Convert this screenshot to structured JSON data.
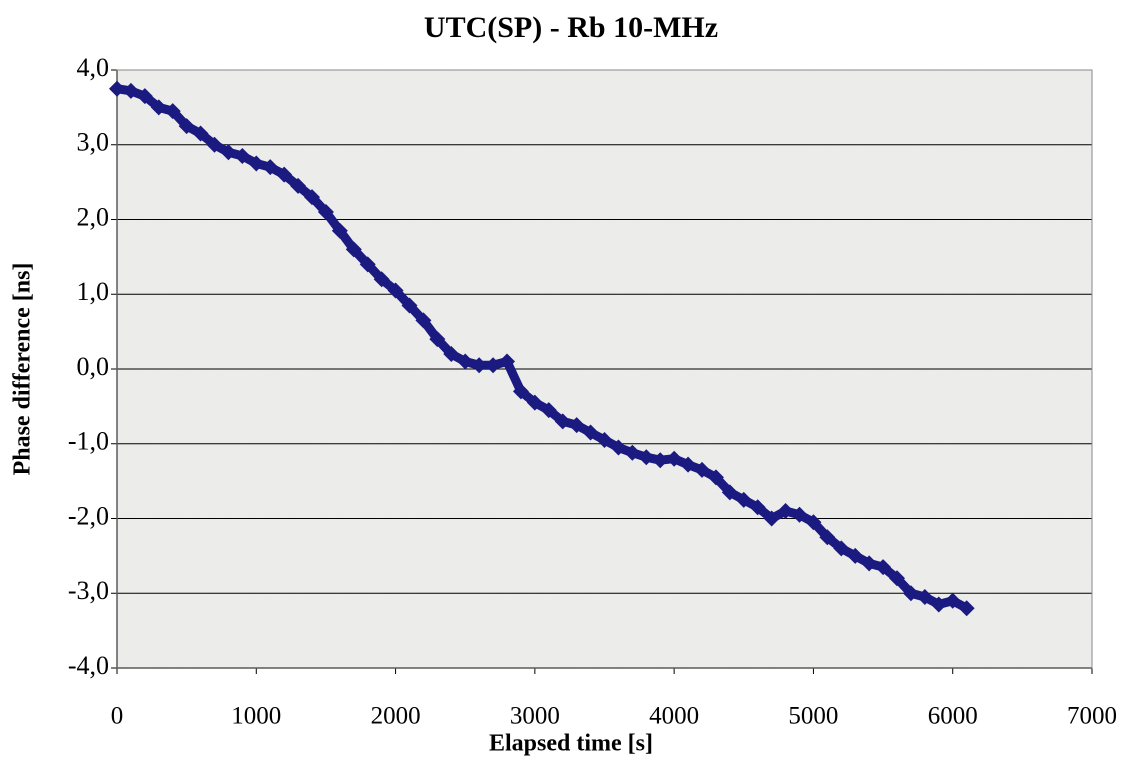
{
  "chart_data": {
    "type": "scatter",
    "title": "UTC(SP) - Rb 10-MHz",
    "x_label": "Elapsed time [s]",
    "y_label": "Phase difference [ns]",
    "x": [
      0,
      100,
      200,
      300,
      400,
      500,
      600,
      700,
      800,
      900,
      1000,
      1100,
      1200,
      1300,
      1400,
      1500,
      1600,
      1700,
      1800,
      1900,
      2000,
      2100,
      2200,
      2300,
      2400,
      2500,
      2600,
      2700,
      2800,
      2900,
      3000,
      3100,
      3200,
      3300,
      3400,
      3500,
      3600,
      3700,
      3800,
      3900,
      4000,
      4100,
      4200,
      4300,
      4400,
      4500,
      4600,
      4700,
      4800,
      4900,
      5000,
      5100,
      5200,
      5300,
      5400,
      5500,
      5600,
      5700,
      5800,
      5900,
      6000,
      6100
    ],
    "series": [
      {
        "name": "UTC(SP) - Rb 10-MHz",
        "color": "#1a1a80",
        "values": [
          3.75,
          3.72,
          3.65,
          3.5,
          3.45,
          3.25,
          3.15,
          3.0,
          2.9,
          2.85,
          2.75,
          2.7,
          2.6,
          2.45,
          2.3,
          2.1,
          1.85,
          1.6,
          1.4,
          1.2,
          1.05,
          0.85,
          0.65,
          0.4,
          0.2,
          0.1,
          0.05,
          0.05,
          0.1,
          -0.3,
          -0.45,
          -0.55,
          -0.7,
          -0.75,
          -0.85,
          -0.95,
          -1.05,
          -1.12,
          -1.18,
          -1.22,
          -1.2,
          -1.28,
          -1.35,
          -1.45,
          -1.65,
          -1.75,
          -1.85,
          -2.0,
          -1.9,
          -1.95,
          -2.05,
          -2.25,
          -2.4,
          -2.5,
          -2.6,
          -2.65,
          -2.8,
          -3.0,
          -3.05,
          -3.15,
          -3.1,
          -3.2
        ]
      }
    ],
    "xlim": [
      0,
      7000
    ],
    "xticks": [
      0,
      1000,
      2000,
      3000,
      4000,
      5000,
      6000,
      7000
    ],
    "ylim": [
      -4,
      4
    ],
    "yticks": [
      {
        "value": -4,
        "label": "-4,0"
      },
      {
        "value": -3,
        "label": "-3,0"
      },
      {
        "value": -2,
        "label": "-2,0"
      },
      {
        "value": -1,
        "label": "-1,0"
      },
      {
        "value": 0,
        "label": "0,0"
      },
      {
        "value": 1,
        "label": "1,0"
      },
      {
        "value": 2,
        "label": "2,0"
      },
      {
        "value": 3,
        "label": "3,0"
      },
      {
        "value": 4,
        "label": "4,0"
      }
    ],
    "grid": true
  }
}
